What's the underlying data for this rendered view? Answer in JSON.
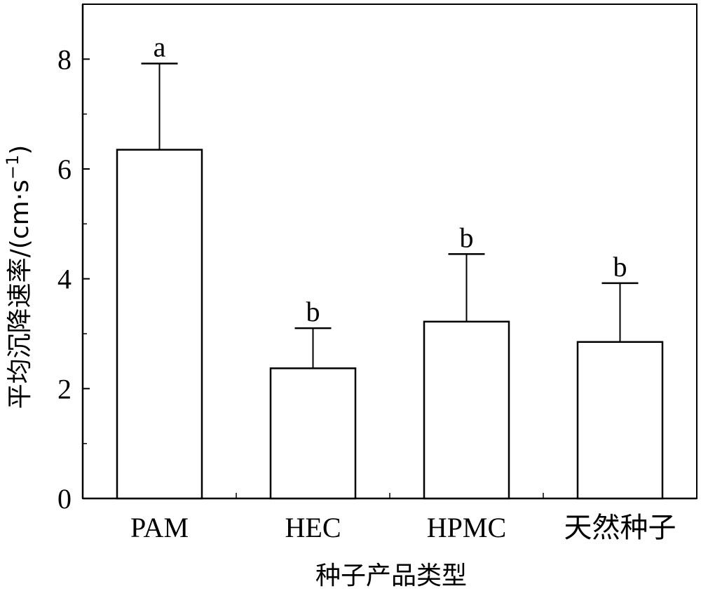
{
  "chart_data": {
    "type": "bar",
    "categories": [
      "PAM",
      "HEC",
      "HPMC",
      "天然种子"
    ],
    "values": [
      6.35,
      2.37,
      3.22,
      2.85
    ],
    "errors": [
      1.57,
      0.73,
      1.23,
      1.07
    ],
    "significance": [
      "a",
      "b",
      "b",
      "b"
    ],
    "xlabel": "种子产品类型",
    "ylabel": "平均沉降速率/(cm·s",
    "ylabel_sup": "−1",
    "ylabel_close": ")",
    "ylim": [
      0,
      9
    ],
    "yticks": [
      0,
      2,
      4,
      6,
      8
    ],
    "grid": false,
    "bar_fill": "#ffffff",
    "bar_stroke": "#000000"
  }
}
